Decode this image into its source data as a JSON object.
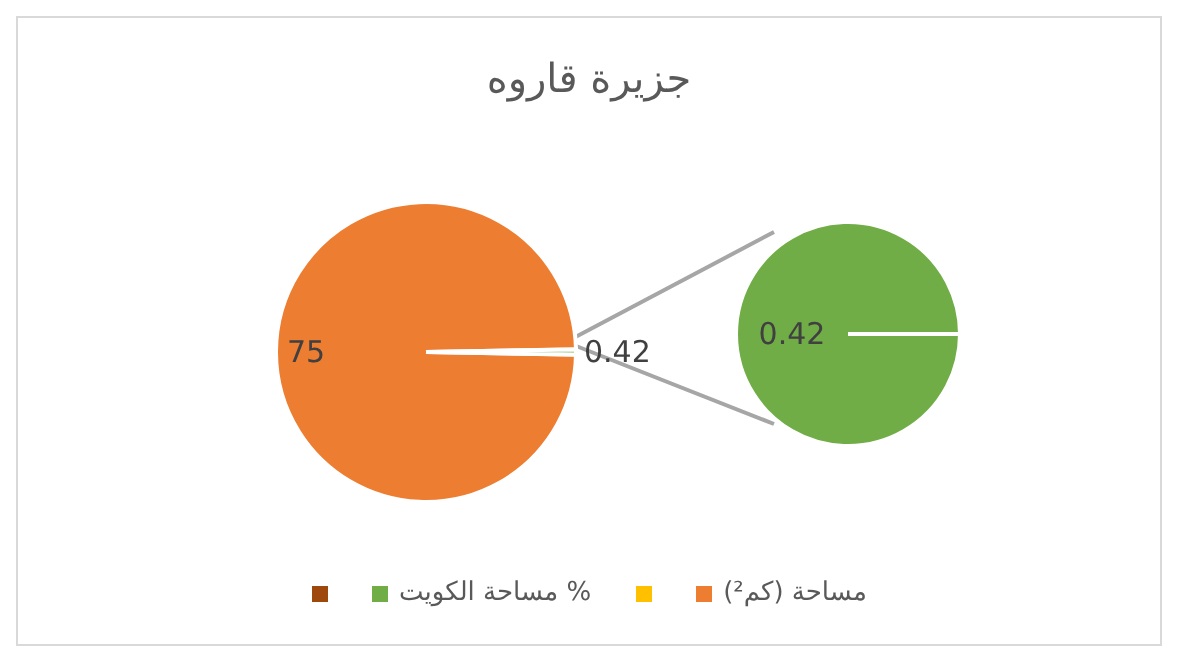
{
  "chart_data": [
    {
      "type": "pie",
      "title": "جزيرة قاروه",
      "categories": [
        "مساحة (كم²)",
        null,
        "مساحة الكويت %",
        null
      ],
      "values": [
        75,
        null,
        0.42,
        null
      ],
      "colors": [
        "#ed7d31",
        "#ffc000",
        "#70ad47",
        "#9e480e"
      ],
      "data_labels": true,
      "legend": "bottom"
    },
    {
      "type": "pie",
      "categories": [
        null
      ],
      "values": [
        0.42
      ],
      "colors": [
        "#70ad47"
      ],
      "data_labels": true
    }
  ]
}
